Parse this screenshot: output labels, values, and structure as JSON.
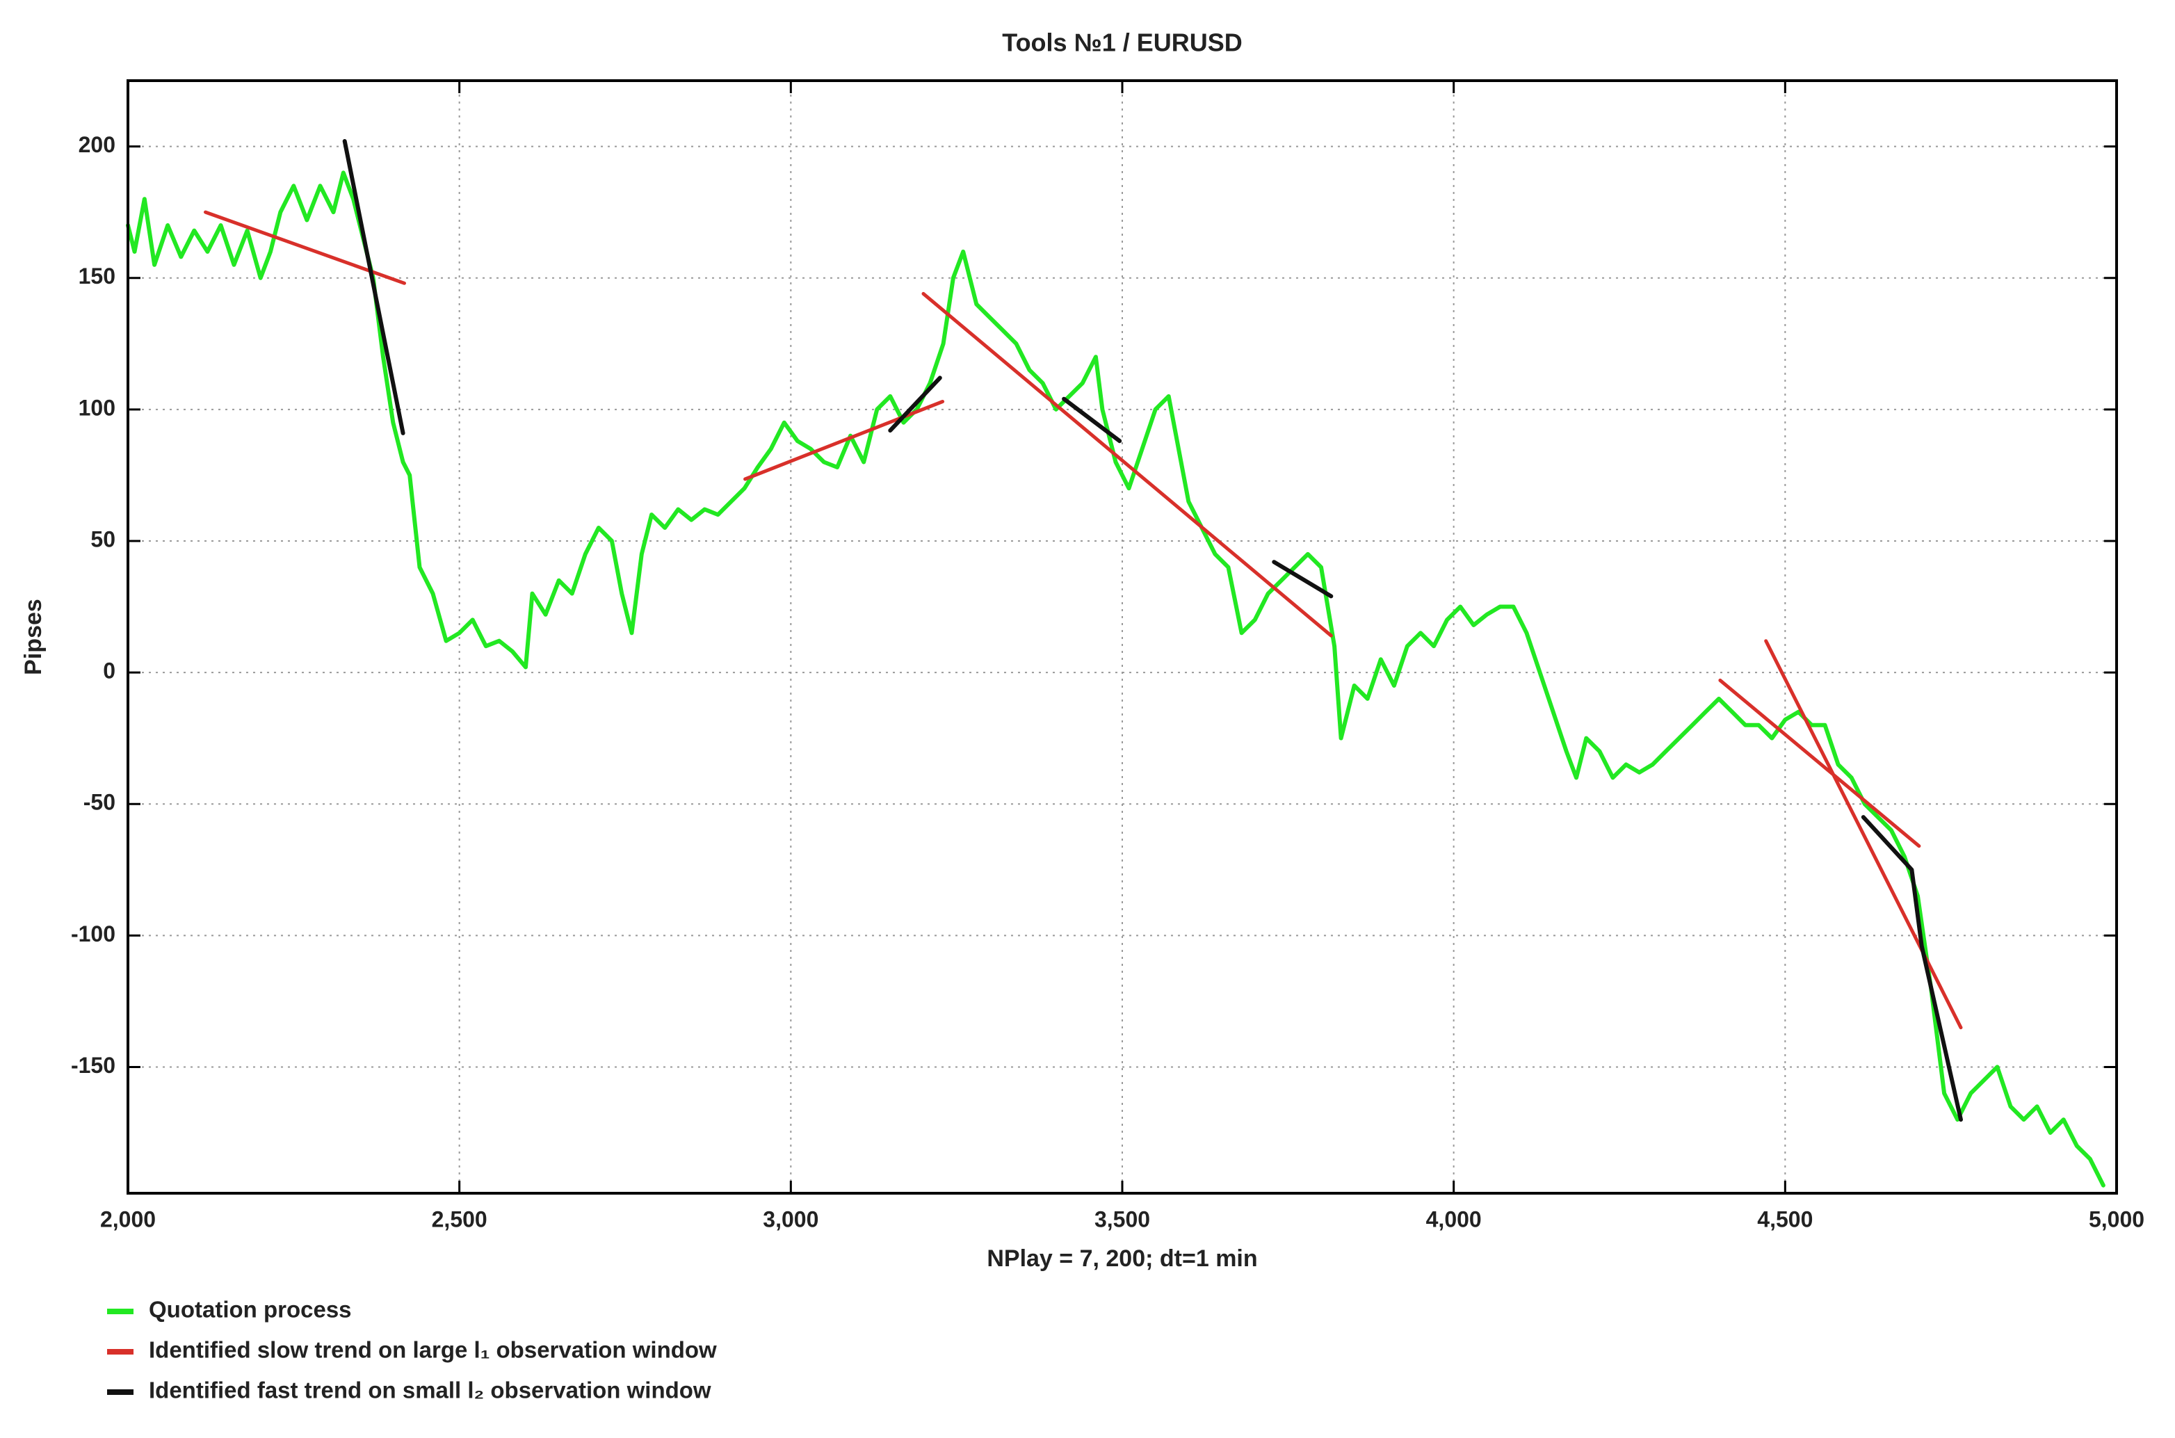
{
  "chart_data": {
    "type": "line",
    "title": "Tools №1 / EURUSD",
    "x_label": "NPlay = 7, 200;  dt=1 min",
    "y_label": "Pipses",
    "xlim": [
      2000,
      5000
    ],
    "ylim": [
      -198,
      225
    ],
    "xticks": [
      {
        "value": 2000,
        "label": "2,000"
      },
      {
        "value": 2500,
        "label": "2,500"
      },
      {
        "value": 3000,
        "label": "3,000"
      },
      {
        "value": 3500,
        "label": "3,500"
      },
      {
        "value": 4000,
        "label": "4,000"
      },
      {
        "value": 4500,
        "label": "4,500"
      },
      {
        "value": 5000,
        "label": "5,000"
      }
    ],
    "yticks": [
      200,
      150,
      100,
      50,
      0,
      -50,
      -100,
      -150
    ],
    "grid": true,
    "legend": "below",
    "series": [
      {
        "name": "Quotation process",
        "color": "#22e822",
        "x": [
          2000,
          2010,
          2025,
          2040,
          2060,
          2080,
          2100,
          2120,
          2140,
          2160,
          2180,
          2200,
          2215,
          2230,
          2250,
          2270,
          2290,
          2310,
          2325,
          2340,
          2355,
          2370,
          2385,
          2400,
          2415,
          2425,
          2440,
          2460,
          2480,
          2500,
          2520,
          2540,
          2560,
          2580,
          2600,
          2610,
          2630,
          2650,
          2670,
          2690,
          2710,
          2730,
          2745,
          2760,
          2775,
          2790,
          2810,
          2830,
          2850,
          2870,
          2890,
          2910,
          2930,
          2950,
          2970,
          2990,
          3010,
          3030,
          3050,
          3070,
          3090,
          3110,
          3130,
          3150,
          3170,
          3190,
          3210,
          3230,
          3245,
          3260,
          3280,
          3300,
          3320,
          3340,
          3360,
          3380,
          3400,
          3420,
          3440,
          3460,
          3470,
          3490,
          3510,
          3530,
          3550,
          3570,
          3585,
          3600,
          3620,
          3640,
          3660,
          3680,
          3700,
          3720,
          3740,
          3760,
          3780,
          3800,
          3820,
          3830,
          3850,
          3870,
          3890,
          3910,
          3930,
          3950,
          3970,
          3990,
          4010,
          4030,
          4050,
          4070,
          4090,
          4110,
          4130,
          4150,
          4170,
          4185,
          4200,
          4220,
          4240,
          4260,
          4280,
          4300,
          4320,
          4340,
          4360,
          4380,
          4400,
          4420,
          4440,
          4460,
          4480,
          4500,
          4520,
          4540,
          4560,
          4580,
          4600,
          4620,
          4640,
          4660,
          4680,
          4700,
          4720,
          4740,
          4760,
          4780,
          4800,
          4820,
          4840,
          4860,
          4880,
          4900,
          4920,
          4940,
          4960,
          4980
        ],
        "values": [
          170,
          160,
          180,
          155,
          170,
          158,
          168,
          160,
          170,
          155,
          168,
          150,
          160,
          175,
          185,
          172,
          185,
          175,
          190,
          180,
          165,
          150,
          120,
          95,
          80,
          75,
          40,
          30,
          12,
          15,
          20,
          10,
          12,
          8,
          2,
          30,
          22,
          35,
          30,
          45,
          55,
          50,
          30,
          15,
          45,
          60,
          55,
          62,
          58,
          62,
          60,
          65,
          70,
          78,
          85,
          95,
          88,
          85,
          80,
          78,
          90,
          80,
          100,
          105,
          95,
          100,
          110,
          125,
          150,
          160,
          140,
          135,
          130,
          125,
          115,
          110,
          100,
          105,
          110,
          120,
          100,
          80,
          70,
          85,
          100,
          105,
          85,
          65,
          55,
          45,
          40,
          15,
          20,
          30,
          35,
          40,
          45,
          40,
          10,
          -25,
          -5,
          -10,
          5,
          -5,
          10,
          15,
          10,
          20,
          25,
          18,
          22,
          25,
          25,
          15,
          0,
          -15,
          -30,
          -40,
          -25,
          -30,
          -40,
          -35,
          -38,
          -35,
          -30,
          -25,
          -20,
          -15,
          -10,
          -15,
          -20,
          -20,
          -25,
          -18,
          -15,
          -20,
          -20,
          -35,
          -40,
          -50,
          -55,
          -60,
          -70,
          -85,
          -120,
          -160,
          -170,
          -160,
          -155,
          -150,
          -165,
          -170,
          -165,
          -175,
          -170,
          -180,
          -185,
          -195
        ]
      },
      {
        "name": "Identified slow trend on large l₁ observation window",
        "color": "#d8302a",
        "x": [
          2117,
          2417,
          null,
          2931,
          3229,
          null,
          3200,
          3815,
          null,
          4402,
          4702,
          null,
          4471,
          4765
        ],
        "values": [
          175,
          148,
          null,
          73.5,
          103,
          null,
          144,
          14,
          null,
          -3,
          -66,
          null,
          12,
          -135
        ]
      },
      {
        "name": "Identified fast trend on small l₂ observation window",
        "color": "#111111",
        "x": [
          2327,
          2415,
          null,
          3150,
          3225,
          null,
          3412,
          3496,
          null,
          3729,
          3815,
          null,
          4618,
          4691,
          4706,
          4765
        ],
        "values": [
          202,
          91,
          null,
          92,
          112,
          null,
          104,
          88,
          null,
          42,
          29,
          null,
          -55,
          -75,
          -104,
          -170
        ]
      }
    ]
  }
}
